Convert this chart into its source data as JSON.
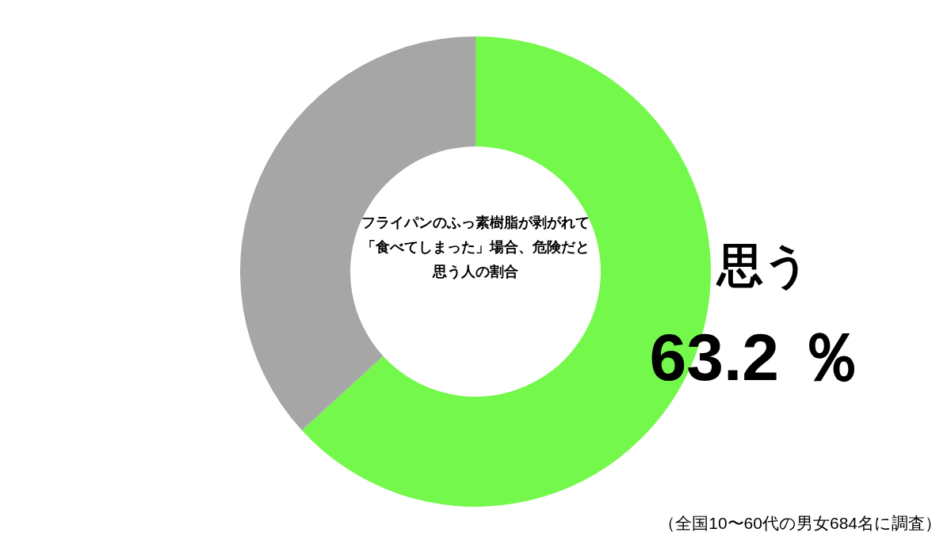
{
  "chart_data": {
    "type": "donut",
    "title": "フライパンのふっ素樹脂が剥がれて「食べてしまった」場合、危険だと思う人の割合",
    "categories": [
      "思う",
      null
    ],
    "values": [
      63.2,
      36.8
    ],
    "colors": [
      "#74f84b",
      "#a6a6a6"
    ],
    "value_labels": [
      "63.2 ％",
      null
    ],
    "annotations": [
      "（全国10〜60代の男女684名に調査）"
    ]
  }
}
